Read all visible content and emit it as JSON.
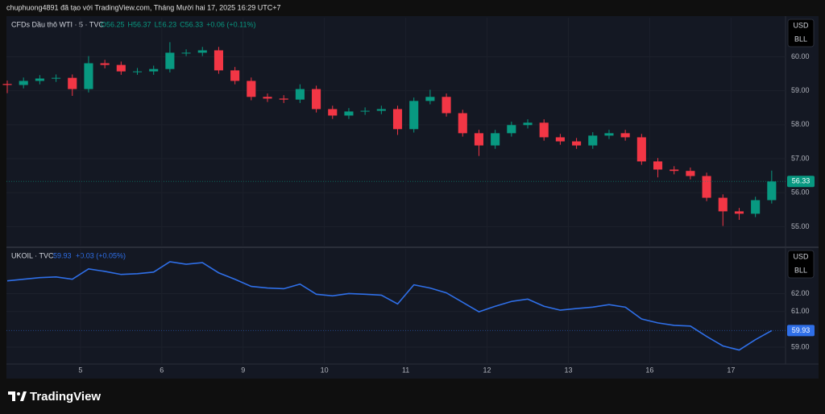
{
  "header": "chuphuong4891 đã tạo với TradingView.com, Tháng Mười hai 17, 2025 16:29 UTC+7",
  "footer": "TradingView",
  "chart_data": [
    {
      "type": "candlestick",
      "title": "CFDs Dầu thô WTI · 5 · TVC",
      "ohlc_legend": [
        "O56.25",
        "H56.37",
        "L56.23",
        "C56.33",
        "+0.06 (+0.11%)"
      ],
      "units": [
        "USD",
        "BLL"
      ],
      "up_color": "#089981",
      "down_color": "#f23645",
      "x": [
        0.1,
        0.3,
        0.5,
        0.7,
        0.9,
        1.1,
        1.3,
        1.5,
        1.7,
        1.9,
        2.1,
        2.3,
        2.5,
        2.7,
        2.9,
        3.1,
        3.3,
        3.5,
        3.7,
        3.9,
        4.1,
        4.3,
        4.5,
        4.7,
        4.9,
        5.1,
        5.3,
        5.5,
        5.7,
        5.9,
        6.1,
        6.3,
        6.5,
        6.7,
        6.9,
        7.1,
        7.3,
        7.5,
        7.7,
        7.9,
        8.1,
        8.3,
        8.5,
        8.7,
        8.9,
        9.1,
        9.3,
        9.5
      ],
      "open": [
        59.2,
        59.17,
        59.29,
        59.36,
        59.38,
        59.05,
        59.81,
        59.76,
        59.57,
        59.57,
        59.64,
        60.12,
        60.12,
        60.19,
        59.6,
        59.29,
        58.82,
        58.77,
        58.74,
        59.05,
        58.46,
        58.27,
        58.39,
        58.41,
        58.46,
        57.87,
        58.7,
        58.82,
        58.34,
        57.75,
        57.39,
        57.75,
        57.99,
        58.06,
        57.63,
        57.51,
        57.39,
        57.68,
        57.75,
        57.63,
        56.92,
        56.68,
        56.64,
        56.49,
        55.85,
        55.45,
        55.38,
        55.78
      ],
      "high": [
        59.3,
        59.39,
        59.46,
        59.48,
        59.48,
        60.02,
        59.91,
        59.86,
        59.67,
        59.74,
        60.43,
        60.22,
        60.29,
        60.29,
        59.7,
        59.39,
        58.92,
        58.87,
        59.19,
        59.15,
        58.56,
        58.49,
        58.51,
        58.56,
        58.56,
        58.8,
        59.03,
        58.92,
        58.44,
        57.85,
        57.85,
        58.09,
        58.16,
        58.16,
        57.73,
        57.61,
        57.78,
        57.85,
        57.85,
        57.73,
        57.02,
        56.78,
        56.74,
        56.59,
        55.95,
        55.55,
        55.88,
        56.65
      ],
      "low": [
        58.93,
        59.07,
        59.19,
        59.26,
        58.85,
        58.95,
        59.66,
        59.47,
        59.47,
        59.47,
        59.54,
        60.02,
        60.02,
        59.5,
        59.19,
        58.72,
        58.67,
        58.64,
        58.64,
        58.36,
        58.17,
        58.17,
        58.29,
        58.31,
        57.7,
        57.77,
        58.6,
        58.24,
        57.65,
        57.08,
        57.29,
        57.65,
        57.89,
        57.53,
        57.41,
        57.29,
        57.29,
        57.58,
        57.53,
        56.82,
        56.45,
        56.54,
        56.39,
        55.75,
        55.02,
        55.2,
        55.28,
        55.68
      ],
      "close": [
        59.17,
        59.29,
        59.36,
        59.38,
        59.05,
        59.81,
        59.76,
        59.57,
        59.57,
        59.64,
        60.12,
        60.12,
        60.19,
        59.6,
        59.29,
        58.82,
        58.77,
        58.74,
        59.05,
        58.46,
        58.27,
        58.39,
        58.41,
        58.46,
        57.87,
        58.7,
        58.82,
        58.34,
        57.75,
        57.39,
        57.75,
        57.99,
        58.06,
        57.63,
        57.51,
        57.39,
        57.68,
        57.75,
        57.63,
        56.92,
        56.68,
        56.64,
        56.49,
        55.85,
        55.45,
        55.38,
        55.78,
        56.33
      ],
      "xlim": [
        0.09,
        9.67
      ],
      "ylim": [
        54.44,
        61.15
      ],
      "yticks": [
        {
          "value": 55,
          "label": "55.00"
        },
        {
          "value": 56,
          "label": "56.00"
        },
        {
          "value": 57,
          "label": "57.00"
        },
        {
          "value": 58,
          "label": "58.00"
        },
        {
          "value": 59,
          "label": "59.00"
        },
        {
          "value": 60,
          "label": "60.00"
        }
      ]
    },
    {
      "type": "line",
      "title": "UKOIL · TVC",
      "change": "+0.03 (+0.05%)",
      "units": [
        "USD",
        "BLL"
      ],
      "series": [
        {
          "name": "UKOIL",
          "color": "#2f6fe8",
          "x": [
            0.1,
            0.3,
            0.5,
            0.7,
            0.9,
            1.1,
            1.3,
            1.5,
            1.7,
            1.9,
            2.1,
            2.3,
            2.5,
            2.7,
            2.9,
            3.1,
            3.3,
            3.5,
            3.7,
            3.9,
            4.1,
            4.3,
            4.5,
            4.7,
            4.9,
            5.1,
            5.3,
            5.5,
            5.7,
            5.9,
            6.1,
            6.3,
            6.5,
            6.7,
            6.9,
            7.1,
            7.3,
            7.5,
            7.7,
            7.9,
            8.1,
            8.3,
            8.5,
            8.7,
            8.9,
            9.1,
            9.3,
            9.5
          ],
          "values": [
            62.71,
            62.8,
            62.89,
            62.93,
            62.8,
            63.38,
            63.24,
            63.07,
            63.11,
            63.2,
            63.78,
            63.64,
            63.73,
            63.16,
            62.8,
            62.4,
            62.31,
            62.27,
            62.53,
            61.96,
            61.87,
            62,
            61.96,
            61.91,
            61.42,
            62.49,
            62.31,
            62.04,
            61.51,
            60.98,
            61.29,
            61.56,
            61.69,
            61.29,
            61.07,
            61.16,
            61.24,
            61.38,
            61.24,
            60.58,
            60.36,
            60.22,
            60.18,
            59.6,
            59.07,
            58.84,
            59.42,
            59.93
          ]
        }
      ],
      "xlim": [
        0.09,
        9.67
      ],
      "ylim": [
        58.1,
        64.5
      ],
      "yticks": [
        {
          "value": 59,
          "label": "59.00"
        },
        {
          "value": 61,
          "label": "61.00"
        },
        {
          "value": 62,
          "label": "62.00"
        }
      ],
      "xticks": [
        {
          "value": 1,
          "label": "5"
        },
        {
          "value": 2,
          "label": "6"
        },
        {
          "value": 3,
          "label": "9"
        },
        {
          "value": 4,
          "label": "10"
        },
        {
          "value": 5,
          "label": "11"
        },
        {
          "value": 6,
          "label": "12"
        },
        {
          "value": 7,
          "label": "13"
        },
        {
          "value": 8,
          "label": "16"
        },
        {
          "value": 9,
          "label": "17"
        }
      ]
    }
  ]
}
